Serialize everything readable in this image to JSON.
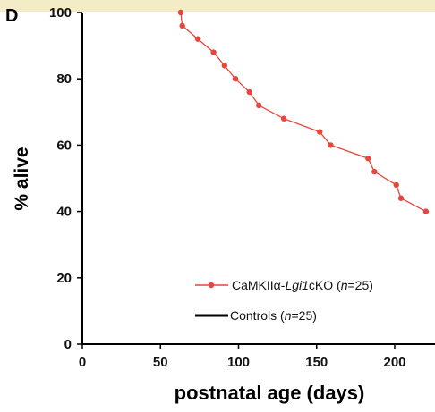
{
  "panel_label": "D",
  "colors": {
    "series_ko": "#e8453c",
    "series_control": "#000000",
    "top_strip": "#f4ecc6"
  },
  "legend": {
    "ko": {
      "prefix": "CaMKIIα-",
      "italic": "Lgi1",
      "suffix": "cKO  (",
      "n_italic": "n",
      "n_value": "=25)"
    },
    "control": {
      "prefix": "Controls (",
      "n_italic": "n",
      "n_value": "=25)"
    }
  },
  "chart_data": {
    "type": "line",
    "xlabel": "postnatal age (days)",
    "ylabel": "% alive",
    "xlim": [
      0,
      220
    ],
    "ylim": [
      0,
      100
    ],
    "xticks": [
      "0",
      "50",
      "100",
      "150",
      "200"
    ],
    "yticks": [
      "0",
      "20",
      "40",
      "60",
      "80",
      "100"
    ],
    "grid": false,
    "legend_position": "bottom-right",
    "series": [
      {
        "name": "CaMKIIα-Lgi1cKO (n=25)",
        "color": "#e8453c",
        "marker": "circle",
        "x": [
          63,
          64,
          74,
          84,
          91,
          98,
          107,
          113,
          129,
          152,
          159,
          183,
          187,
          201,
          204,
          220
        ],
        "y": [
          100,
          96,
          92,
          88,
          84,
          80,
          76,
          72,
          68,
          64,
          60,
          56,
          52,
          48,
          44,
          40
        ]
      },
      {
        "name": "Controls (n=25)",
        "color": "#000000",
        "marker": "none",
        "x": [],
        "y": []
      }
    ]
  }
}
